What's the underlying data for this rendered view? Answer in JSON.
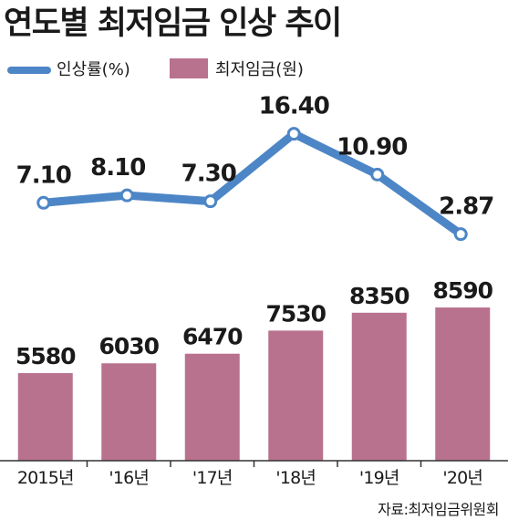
{
  "title": "연도별 최저임금 인상 추이",
  "source": "자료:최저임금위원회",
  "colors": {
    "line": "#4d86c6",
    "bar": "#b9728e",
    "axis": "#333333",
    "text": "#1a1a1a"
  },
  "chart_data": {
    "type": "bar+line",
    "categories": [
      "2015년",
      "'16년",
      "'17년",
      "'18년",
      "'19년",
      "'20년"
    ],
    "series": [
      {
        "name": "최저임금(원)",
        "type": "bar",
        "values": [
          5580,
          6030,
          6470,
          7530,
          8350,
          8590
        ]
      },
      {
        "name": "인상률(%)",
        "type": "line",
        "values": [
          7.1,
          8.1,
          7.3,
          16.4,
          10.9,
          2.87
        ]
      }
    ],
    "labels": {
      "bar": [
        "5580",
        "6030",
        "6470",
        "7530",
        "8350",
        "8590"
      ],
      "line": [
        "7.10",
        "8.10",
        "7.30",
        "16.40",
        "10.90",
        "2.87"
      ]
    },
    "legend": [
      "인상률(%)",
      "최저임금(원)"
    ],
    "legend_position": "top-left",
    "grid": false
  }
}
